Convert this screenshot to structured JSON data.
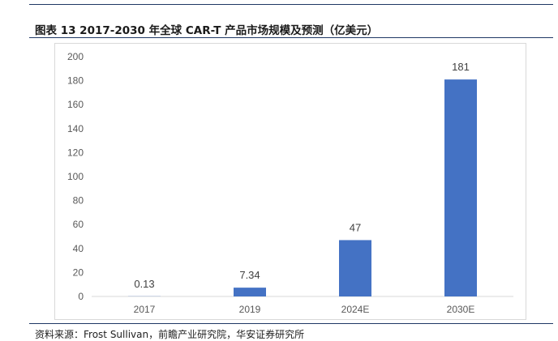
{
  "figure": {
    "title": "图表 13 2017-2030 年全球 CAR-T 产品市场规模及预测（亿美元）",
    "source": "资料来源：Frost Sullivan，前瞻产业研究院，华安证券研究所"
  },
  "chart_data": {
    "type": "bar",
    "title": "",
    "xlabel": "",
    "ylabel": "",
    "categories": [
      "2017",
      "2019",
      "2024E",
      "2030E"
    ],
    "values": [
      0.13,
      7.34,
      47,
      181
    ],
    "data_labels": [
      "0.13",
      "7.34",
      "47",
      "181"
    ],
    "ylim": [
      0,
      200
    ],
    "yticks": [
      0,
      20,
      40,
      60,
      80,
      100,
      120,
      140,
      160,
      180,
      200
    ],
    "grid": false,
    "legend": "none",
    "bar_color": "#4472c4"
  }
}
